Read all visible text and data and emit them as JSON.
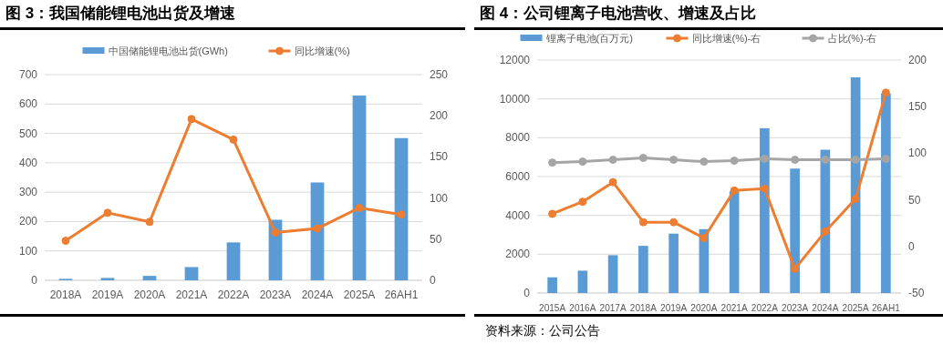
{
  "chart_data": [
    {
      "type": "bar",
      "title": "图 3：我国储能锂电池出货及增速",
      "categories": [
        "2018A",
        "2019A",
        "2020A",
        "2021A",
        "2022A",
        "2023A",
        "2024A",
        "2025A",
        "26AH1"
      ],
      "series": [
        {
          "name": "中国储能锂电池出货(GWh)",
          "color": "#5b9bd5",
          "values": [
            5,
            8,
            15,
            45,
            129,
            206,
            333,
            629,
            484
          ]
        },
        {
          "name": "同比增速(%)",
          "type": "line",
          "axis": "y2",
          "color": "#ed7d31",
          "values": [
            48,
            82,
            71,
            196,
            171,
            58,
            63,
            88,
            80
          ]
        }
      ],
      "ylim": [
        0,
        700
      ],
      "yticks": [
        0,
        100,
        200,
        300,
        400,
        500,
        600,
        700
      ],
      "y2lim": [
        0,
        250
      ],
      "y2ticks": [
        0,
        50,
        100,
        150,
        200,
        250
      ],
      "grid": "y",
      "legend": "top",
      "marker": "circle"
    },
    {
      "type": "bar",
      "title": "图 4：公司锂离子电池营收、增速及占比",
      "categories": [
        "2015A",
        "2016A",
        "2017A",
        "2018A",
        "2019A",
        "2020A",
        "2021A",
        "2022A",
        "2023A",
        "2024A",
        "2025A",
        "26AH1"
      ],
      "series": [
        {
          "name": "锂离子电池(百万元)",
          "color": "#5b9bd5",
          "values": [
            810,
            1150,
            1950,
            2430,
            3060,
            3290,
            5240,
            8490,
            6410,
            7380,
            11110,
            10280
          ]
        },
        {
          "name": "同比增速(%)-右",
          "type": "line",
          "axis": "y2",
          "color": "#ed7d31",
          "values": [
            35,
            48,
            69,
            26,
            26,
            9,
            60,
            62,
            -24,
            16,
            51,
            165
          ]
        },
        {
          "name": "占比(%)-右",
          "type": "line",
          "axis": "y2",
          "color": "#a5a5a5",
          "values": [
            90,
            91,
            93,
            95,
            93,
            91,
            92,
            94,
            93,
            93,
            93,
            94
          ]
        }
      ],
      "ylim": [
        0,
        12000
      ],
      "yticks": [
        0,
        2000,
        4000,
        6000,
        8000,
        10000,
        12000
      ],
      "y2lim": [
        -50,
        200
      ],
      "y2ticks": [
        -50,
        0,
        50,
        100,
        150,
        200
      ],
      "grid": "y",
      "legend": "top",
      "marker": "circle",
      "annotations": [
        "资料来源：公司公告"
      ]
    }
  ]
}
